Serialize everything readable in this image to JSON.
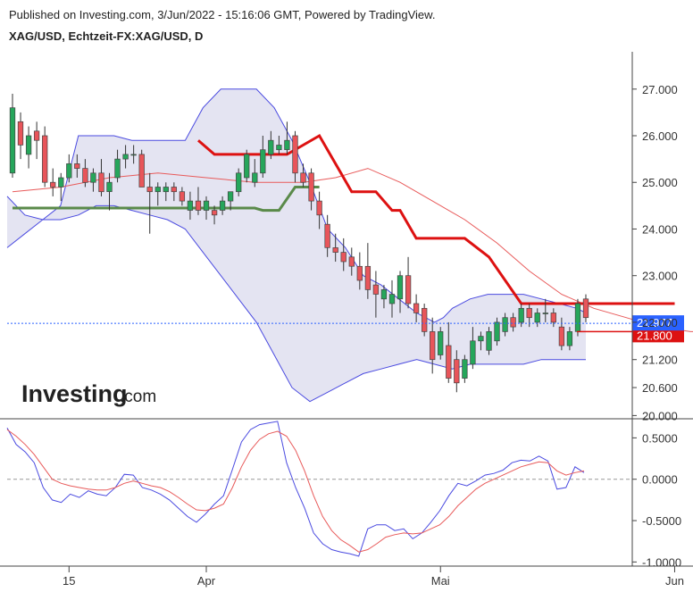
{
  "header": {
    "published": "Published on Investing.com, 3/Jun/2022 - 15:16:06 GMT, Powered by TradingView.",
    "symbol": "XAG/USD, Echtzeit-FX:XAG/USD, D"
  },
  "logo": {
    "main": "Investing",
    "suffix": ".com"
  },
  "colors": {
    "bull": "#26a65b",
    "bear": "#e8555a",
    "band_fill": "#e4e4f2",
    "band_line": "#4a4ae0",
    "mid_line": "#e85a5a",
    "supertrend_down": "#dd1111",
    "supertrend_up": "#5a8a4a",
    "osc_fast": "#4a4ae0",
    "osc_slow": "#e85a5a",
    "last_price": "#2a62ff",
    "prev_price": "#dd1111"
  },
  "chart_data": [
    {
      "type": "candlestick",
      "title": "XAG/USD, Echtzeit-FX:XAG/USD, D",
      "y_ticks": [
        "27.000",
        "26.000",
        "25.000",
        "24.000",
        "23.000",
        "22.000",
        "21.200",
        "20.600",
        "20.000"
      ],
      "ylim": [
        19.95,
        27.8
      ],
      "x_labels": [
        {
          "label": "15",
          "index": 7
        },
        {
          "label": "Apr",
          "index": 24
        },
        {
          "label": "Mai",
          "index": 53
        },
        {
          "label": "Jun",
          "index": 82
        }
      ],
      "price_labels": {
        "last": "21.977",
        "previous": "21.800"
      },
      "candles": [
        [
          25.2,
          26.9,
          25.1,
          26.6
        ],
        [
          26.3,
          26.5,
          25.5,
          25.8
        ],
        [
          25.6,
          26.2,
          25.3,
          26.0
        ],
        [
          26.1,
          26.3,
          25.5,
          25.9
        ],
        [
          26.0,
          26.2,
          24.9,
          25.0
        ],
        [
          25.0,
          25.3,
          24.7,
          24.9
        ],
        [
          24.9,
          25.2,
          24.6,
          25.1
        ],
        [
          25.1,
          25.6,
          25.0,
          25.4
        ],
        [
          25.4,
          25.6,
          25.1,
          25.3
        ],
        [
          25.3,
          25.5,
          24.9,
          25.0
        ],
        [
          25.0,
          25.3,
          24.8,
          25.2
        ],
        [
          25.2,
          25.5,
          24.7,
          24.8
        ],
        [
          24.8,
          25.2,
          24.4,
          25.0
        ],
        [
          25.1,
          25.7,
          25.0,
          25.5
        ],
        [
          25.5,
          25.8,
          25.3,
          25.6
        ],
        [
          25.6,
          25.8,
          25.4,
          25.6
        ],
        [
          25.6,
          25.7,
          24.9,
          24.9
        ],
        [
          24.9,
          25.2,
          23.9,
          24.8
        ],
        [
          24.8,
          25.0,
          24.5,
          24.9
        ],
        [
          24.8,
          25.0,
          24.6,
          24.9
        ],
        [
          24.9,
          25.0,
          24.6,
          24.8
        ],
        [
          24.8,
          24.9,
          24.5,
          24.6
        ],
        [
          24.4,
          24.8,
          24.2,
          24.6
        ],
        [
          24.6,
          24.9,
          24.3,
          24.4
        ],
        [
          24.4,
          24.7,
          24.2,
          24.6
        ],
        [
          24.4,
          24.5,
          24.1,
          24.3
        ],
        [
          24.4,
          24.7,
          24.3,
          24.6
        ],
        [
          24.6,
          24.8,
          24.4,
          24.8
        ],
        [
          24.8,
          25.3,
          24.7,
          25.2
        ],
        [
          25.1,
          25.7,
          25.0,
          25.6
        ],
        [
          25.0,
          25.5,
          24.9,
          25.2
        ],
        [
          25.2,
          26.0,
          25.1,
          25.7
        ],
        [
          25.6,
          26.1,
          25.5,
          25.9
        ],
        [
          25.7,
          26.0,
          25.6,
          25.8
        ],
        [
          25.7,
          26.3,
          25.6,
          25.9
        ],
        [
          26.0,
          26.1,
          25.0,
          25.2
        ],
        [
          25.2,
          25.4,
          24.9,
          25.0
        ],
        [
          25.2,
          25.3,
          24.4,
          24.6
        ],
        [
          24.6,
          24.8,
          24.0,
          24.3
        ],
        [
          24.1,
          24.3,
          23.4,
          23.6
        ],
        [
          23.6,
          23.9,
          23.3,
          23.5
        ],
        [
          23.5,
          23.8,
          23.1,
          23.3
        ],
        [
          23.4,
          23.6,
          23.0,
          23.2
        ],
        [
          23.2,
          23.5,
          22.7,
          22.9
        ],
        [
          23.2,
          23.7,
          22.5,
          22.7
        ],
        [
          22.8,
          23.1,
          22.1,
          22.6
        ],
        [
          22.5,
          22.8,
          22.3,
          22.7
        ],
        [
          22.4,
          22.9,
          22.1,
          22.6
        ],
        [
          22.5,
          23.1,
          22.2,
          23.0
        ],
        [
          23.0,
          23.4,
          22.3,
          22.4
        ],
        [
          22.4,
          22.6,
          22.0,
          22.2
        ],
        [
          22.3,
          22.4,
          21.7,
          21.8
        ],
        [
          21.8,
          22.1,
          20.9,
          21.2
        ],
        [
          21.3,
          21.9,
          21.2,
          21.8
        ],
        [
          21.5,
          22.0,
          20.7,
          20.8
        ],
        [
          21.2,
          21.4,
          20.5,
          20.7
        ],
        [
          20.8,
          21.3,
          20.7,
          21.2
        ],
        [
          21.1,
          21.9,
          21.0,
          21.6
        ],
        [
          21.6,
          21.8,
          21.4,
          21.7
        ],
        [
          21.4,
          21.9,
          21.3,
          21.8
        ],
        [
          21.6,
          22.1,
          21.5,
          22.0
        ],
        [
          21.8,
          22.2,
          21.7,
          22.1
        ],
        [
          22.1,
          22.2,
          21.8,
          21.9
        ],
        [
          22.0,
          22.4,
          21.9,
          22.3
        ],
        [
          22.3,
          22.4,
          21.9,
          22.1
        ],
        [
          22.0,
          22.3,
          21.9,
          22.2
        ],
        [
          22.2,
          22.5,
          22.0,
          22.2
        ],
        [
          22.2,
          22.3,
          21.9,
          22.0
        ],
        [
          21.9,
          22.1,
          21.4,
          21.5
        ],
        [
          21.5,
          21.9,
          21.4,
          21.8
        ],
        [
          21.8,
          22.5,
          21.7,
          22.4
        ],
        [
          22.5,
          22.6,
          22.0,
          22.1
        ]
      ],
      "bollinger_upper": [
        [
          0,
          23.6
        ],
        [
          4,
          23.9
        ],
        [
          8,
          24.2
        ],
        [
          12,
          24.5
        ],
        [
          16,
          26.0
        ],
        [
          20,
          26.0
        ],
        [
          24,
          26.0
        ],
        [
          28,
          25.9
        ],
        [
          32,
          25.9
        ],
        [
          36,
          25.9
        ],
        [
          40,
          25.9
        ],
        [
          44,
          26.6
        ],
        [
          48,
          27.0
        ],
        [
          52,
          27.0
        ],
        [
          56,
          27.0
        ],
        [
          60,
          26.6
        ],
        [
          64,
          25.9
        ],
        [
          68,
          25.0
        ],
        [
          72,
          24.0
        ],
        [
          76,
          23.6
        ],
        [
          80,
          23.0
        ],
        [
          84,
          22.8
        ],
        [
          88,
          22.5
        ],
        [
          92,
          22.2
        ],
        [
          96,
          22.0
        ],
        [
          98,
          22.1
        ],
        [
          100,
          22.3
        ],
        [
          104,
          22.5
        ],
        [
          108,
          22.6
        ],
        [
          112,
          22.6
        ],
        [
          116,
          22.6
        ],
        [
          120,
          22.5
        ],
        [
          124,
          22.4
        ],
        [
          128,
          22.3
        ],
        [
          130,
          22.2
        ]
      ],
      "bollinger_lower": [
        [
          0,
          24.7
        ],
        [
          4,
          24.3
        ],
        [
          8,
          24.2
        ],
        [
          12,
          24.2
        ],
        [
          16,
          24.3
        ],
        [
          20,
          24.5
        ],
        [
          24,
          24.5
        ],
        [
          28,
          24.4
        ],
        [
          32,
          24.3
        ],
        [
          36,
          24.2
        ],
        [
          40,
          24.0
        ],
        [
          44,
          23.5
        ],
        [
          48,
          23.0
        ],
        [
          52,
          22.5
        ],
        [
          56,
          22.0
        ],
        [
          60,
          21.3
        ],
        [
          64,
          20.6
        ],
        [
          68,
          20.3
        ],
        [
          72,
          20.5
        ],
        [
          76,
          20.7
        ],
        [
          80,
          20.9
        ],
        [
          84,
          21.0
        ],
        [
          88,
          21.1
        ],
        [
          92,
          21.2
        ],
        [
          96,
          21.1
        ],
        [
          100,
          21.0
        ],
        [
          104,
          21.1
        ],
        [
          108,
          21.1
        ],
        [
          112,
          21.1
        ],
        [
          116,
          21.1
        ],
        [
          120,
          21.2
        ],
        [
          124,
          21.2
        ],
        [
          128,
          21.2
        ],
        [
          130,
          21.2
        ]
      ],
      "bollinger_mid": [
        [
          0,
          24.8
        ],
        [
          6,
          24.9
        ],
        [
          12,
          25.1
        ],
        [
          18,
          25.2
        ],
        [
          24,
          25.1
        ],
        [
          30,
          25.0
        ],
        [
          36,
          25.0
        ],
        [
          40,
          25.1
        ],
        [
          44,
          25.3
        ],
        [
          48,
          25.0
        ],
        [
          52,
          24.6
        ],
        [
          56,
          24.2
        ],
        [
          60,
          23.7
        ],
        [
          64,
          23.1
        ],
        [
          68,
          22.6
        ],
        [
          72,
          22.3
        ],
        [
          76,
          22.1
        ],
        [
          80,
          21.9
        ],
        [
          84,
          21.8
        ],
        [
          90,
          21.8
        ]
      ],
      "supertrend_up": [
        [
          0,
          24.45
        ],
        [
          10,
          24.45
        ],
        [
          22,
          24.45
        ],
        [
          30,
          24.45
        ],
        [
          31,
          24.4
        ],
        [
          33,
          24.4
        ],
        [
          35,
          24.9
        ],
        [
          38,
          24.9
        ]
      ],
      "supertrend_down": [
        [
          23,
          25.9
        ],
        [
          25,
          25.6
        ],
        [
          31,
          25.6
        ],
        [
          34,
          25.6
        ],
        [
          38,
          26.0
        ],
        [
          42,
          24.8
        ],
        [
          45,
          24.8
        ],
        [
          47,
          24.4
        ],
        [
          48,
          24.4
        ],
        [
          50,
          23.8
        ],
        [
          56,
          23.8
        ],
        [
          59,
          23.4
        ],
        [
          61,
          22.9
        ],
        [
          63,
          22.4
        ],
        [
          75,
          22.4
        ],
        [
          82,
          22.4
        ]
      ]
    },
    {
      "type": "line",
      "y_ticks": [
        "0.5000",
        "0.0000",
        "-0.5000",
        "-1.0000"
      ],
      "ylim": [
        -1.05,
        0.72
      ],
      "zero_line": true,
      "series": [
        {
          "values": [
            0.62,
            0.42,
            0.33,
            0.2,
            -0.1,
            -0.25,
            -0.28,
            -0.18,
            -0.22,
            -0.14,
            -0.18,
            -0.2,
            -0.1,
            0.06,
            0.05,
            -0.1,
            -0.13,
            -0.18,
            -0.25,
            -0.35,
            -0.45,
            -0.52,
            -0.42,
            -0.3,
            -0.2,
            0.12,
            0.45,
            0.6,
            0.66,
            0.68,
            0.7,
            0.2,
            -0.1,
            -0.35,
            -0.65,
            -0.78,
            -0.85,
            -0.88,
            -0.9,
            -0.93,
            -0.6,
            -0.55,
            -0.55,
            -0.62,
            -0.6,
            -0.72,
            -0.65,
            -0.52,
            -0.38,
            -0.2,
            -0.05,
            -0.08,
            -0.02,
            0.05,
            0.07,
            0.11,
            0.2,
            0.23,
            0.22,
            0.28,
            0.22,
            -0.12,
            -0.1,
            0.15,
            0.08
          ]
        },
        {
          "values": [
            0.6,
            0.52,
            0.42,
            0.3,
            0.15,
            0.0,
            -0.05,
            -0.08,
            -0.1,
            -0.12,
            -0.13,
            -0.13,
            -0.1,
            -0.05,
            -0.02,
            -0.05,
            -0.08,
            -0.1,
            -0.15,
            -0.22,
            -0.3,
            -0.37,
            -0.38,
            -0.35,
            -0.3,
            -0.1,
            0.15,
            0.35,
            0.48,
            0.55,
            0.58,
            0.52,
            0.35,
            0.1,
            -0.2,
            -0.45,
            -0.62,
            -0.73,
            -0.8,
            -0.88,
            -0.85,
            -0.78,
            -0.7,
            -0.67,
            -0.65,
            -0.66,
            -0.65,
            -0.6,
            -0.55,
            -0.45,
            -0.32,
            -0.22,
            -0.12,
            -0.05,
            0.0,
            0.05,
            0.1,
            0.15,
            0.18,
            0.21,
            0.2,
            0.1,
            0.05,
            0.08,
            0.1
          ]
        }
      ]
    }
  ]
}
